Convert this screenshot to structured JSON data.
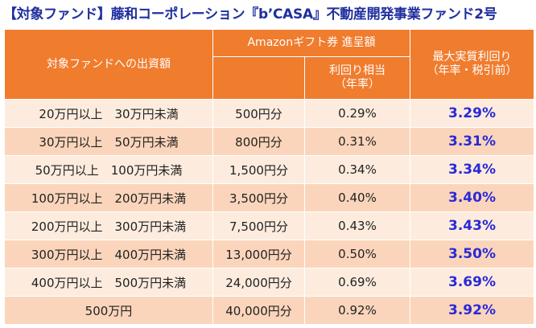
{
  "title": "【対象ファンド】藤和コーポレーション『b’CASA』不動産開発事業ファンド2号",
  "header": {
    "investment": "対象ファンドへの出資額",
    "gift": "Amazonギフト券 進呈額",
    "yield_line1": "利回り相当",
    "yield_line2": "（年率）",
    "max_line1": "最大実質利回り",
    "max_line2": "（年率・税引前）"
  },
  "rows": [
    {
      "range": "20万円以上　30万円未満",
      "gift": "500円分",
      "yield": "0.29%",
      "max": "3.29%"
    },
    {
      "range": "30万円以上　50万円未満",
      "gift": "800円分",
      "yield": "0.31%",
      "max": "3.31%"
    },
    {
      "range": "50万円以上　100万円未満",
      "gift": "1,500円分",
      "yield": "0.34%",
      "max": "3.34%"
    },
    {
      "range": "100万円以上　200万円未満",
      "gift": "3,500円分",
      "yield": "0.40%",
      "max": "3.40%"
    },
    {
      "range": "200万円以上　300万円未満",
      "gift": "7,500円分",
      "yield": "0.43%",
      "max": "3.43%"
    },
    {
      "range": "300万円以上　400万円未満",
      "gift": "13,000円分",
      "yield": "0.50%",
      "max": "3.50%"
    },
    {
      "range": "400万円以上　500万円未満",
      "gift": "24,000円分",
      "yield": "0.69%",
      "max": "3.69%"
    },
    {
      "range": "500万円",
      "gift": "40,000円分",
      "yield": "0.92%",
      "max": "3.92%"
    }
  ],
  "colors": {
    "header_bg": "#f07c2e",
    "row_light": "#fdecde",
    "row_dark": "#fbd5bb",
    "title": "#1f2f9e",
    "rate": "#2a2ad6"
  }
}
